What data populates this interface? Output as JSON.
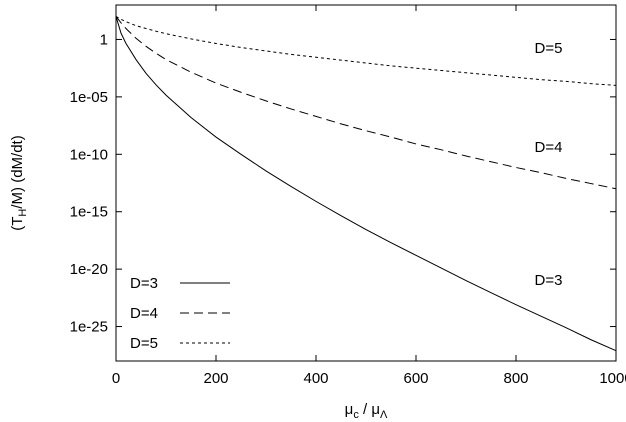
{
  "chart_data": {
    "type": "line",
    "title": "",
    "xlabel": {
      "main": "μ",
      "sub1": "c",
      "mid": " / μ",
      "sub2": "Λ"
    },
    "ylabel": {
      "pre": "(T",
      "sub": "H",
      "post": "/M) (dM/dt)"
    },
    "xlim": [
      0,
      1000
    ],
    "ylim_log10": [
      -28,
      3
    ],
    "y_scale": "log",
    "grid": false,
    "legend_position": "bottom-left",
    "x_ticks": [
      {
        "value": 0,
        "label": "0"
      },
      {
        "value": 200,
        "label": "200"
      },
      {
        "value": 400,
        "label": "400"
      },
      {
        "value": 600,
        "label": "600"
      },
      {
        "value": 800,
        "label": "800"
      },
      {
        "value": 1000,
        "label": "1000"
      }
    ],
    "y_ticks": [
      {
        "log10": 0,
        "label": "1"
      },
      {
        "log10": -5,
        "label": "1e-05"
      },
      {
        "log10": -10,
        "label": "1e-10"
      },
      {
        "log10": -15,
        "label": "1e-15"
      },
      {
        "log10": -20,
        "label": "1e-20"
      },
      {
        "log10": -25,
        "label": "1e-25"
      }
    ],
    "series": [
      {
        "name": "D=3",
        "style": "solid",
        "x": [
          0,
          10,
          20,
          40,
          60,
          80,
          100,
          150,
          200,
          250,
          300,
          350,
          400,
          450,
          500,
          550,
          600,
          650,
          700,
          750,
          800,
          850,
          900,
          950,
          1000
        ],
        "log10_y": [
          2.0,
          0.55,
          -0.35,
          -1.75,
          -2.95,
          -3.95,
          -4.85,
          -6.8,
          -8.5,
          -10.0,
          -11.45,
          -12.8,
          -14.1,
          -15.35,
          -16.55,
          -17.7,
          -18.8,
          -19.9,
          -21.0,
          -22.05,
          -23.1,
          -24.1,
          -25.1,
          -26.15,
          -27.1
        ]
      },
      {
        "name": "D=4",
        "style": "dashed",
        "x": [
          0,
          10,
          20,
          40,
          60,
          80,
          100,
          150,
          200,
          250,
          300,
          350,
          400,
          450,
          500,
          550,
          600,
          650,
          700,
          750,
          800,
          850,
          900,
          950,
          1000
        ],
        "log10_y": [
          2.0,
          1.45,
          0.95,
          0.1,
          -0.6,
          -1.2,
          -1.75,
          -2.85,
          -3.8,
          -4.6,
          -5.35,
          -6.05,
          -6.7,
          -7.35,
          -7.95,
          -8.5,
          -9.1,
          -9.6,
          -10.15,
          -10.65,
          -11.15,
          -11.6,
          -12.1,
          -12.55,
          -13.0
        ]
      },
      {
        "name": "D=5",
        "style": "dotted",
        "x": [
          0,
          10,
          20,
          40,
          60,
          80,
          100,
          150,
          200,
          250,
          300,
          350,
          400,
          450,
          500,
          550,
          600,
          650,
          700,
          750,
          800,
          850,
          900,
          950,
          1000
        ],
        "log10_y": [
          2.0,
          1.75,
          1.55,
          1.2,
          0.95,
          0.72,
          0.5,
          0.05,
          -0.35,
          -0.7,
          -1.0,
          -1.3,
          -1.55,
          -1.8,
          -2.05,
          -2.3,
          -2.5,
          -2.7,
          -2.9,
          -3.1,
          -3.3,
          -3.5,
          -3.65,
          -3.85,
          -4.0
        ]
      }
    ],
    "annotations": [
      {
        "text": "D=5",
        "x": 865,
        "log10_y": -1.2
      },
      {
        "text": "D=4",
        "x": 865,
        "log10_y": -9.8
      },
      {
        "text": "D=3",
        "x": 865,
        "log10_y": -21.4
      }
    ],
    "legend": [
      {
        "label": "D=3",
        "style": "solid"
      },
      {
        "label": "D=4",
        "style": "dashed"
      },
      {
        "label": "D=5",
        "style": "dotted"
      }
    ]
  }
}
